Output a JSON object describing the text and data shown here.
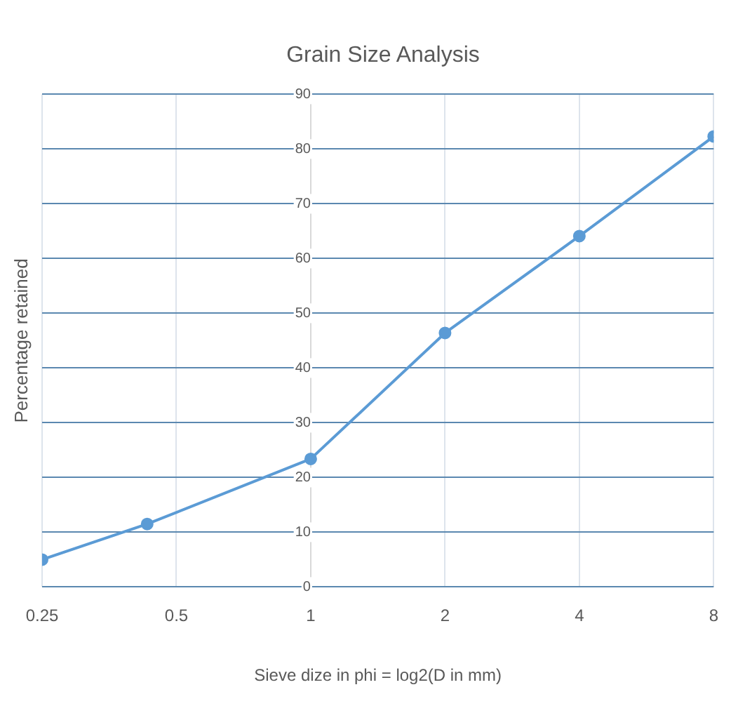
{
  "chart_data": {
    "type": "line",
    "title": "Grain Size Analysis",
    "xlabel": "Sieve dize in phi = log2(D in mm)",
    "ylabel": "Percentage retained",
    "log": "x",
    "x": [
      0.25,
      0.43,
      1,
      2,
      4,
      8
    ],
    "series": [
      {
        "color": "#5b9bd5",
        "values": [
          5,
          11.5,
          23.4,
          46.4,
          64.1,
          82.3
        ]
      }
    ],
    "xlim": [
      0.25,
      8
    ],
    "xticks": [
      0.25,
      0.5,
      1,
      2,
      4,
      8
    ],
    "ylim": [
      0,
      90
    ],
    "yticks": [
      0,
      10,
      20,
      30,
      40,
      50,
      60,
      70,
      80,
      90
    ],
    "grid": true,
    "marker": "circle",
    "line_style": "solid",
    "legend": false
  }
}
